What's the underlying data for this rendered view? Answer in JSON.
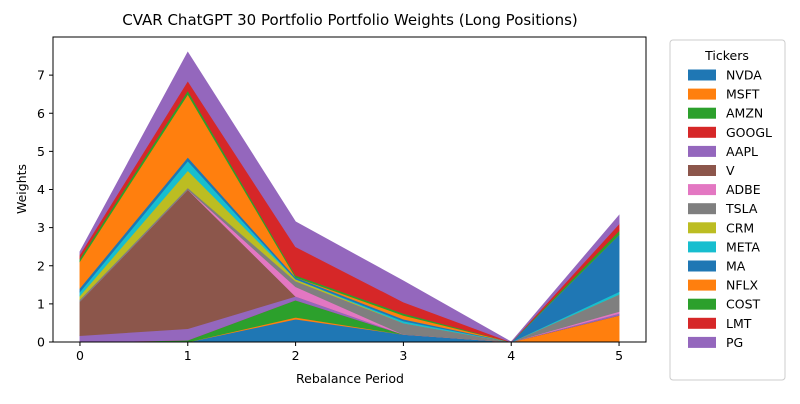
{
  "chart_data": {
    "type": "area",
    "title": "CVAR ChatGPT 30 Portfolio Portfolio Weights (Long Positions)",
    "xlabel": "Rebalance Period",
    "ylabel": "Weights",
    "x": [
      0,
      1,
      2,
      3,
      4,
      5
    ],
    "xlim": [
      -0.25,
      5.25
    ],
    "ylim": [
      0,
      8.0
    ],
    "yticks": [
      0,
      1,
      2,
      3,
      4,
      5,
      6,
      7
    ],
    "grid": false,
    "legend": {
      "title": "Tickers",
      "placement": "outside-right"
    },
    "series": [
      {
        "name": "NVDA",
        "color": "#1f77b4",
        "values": [
          0.0,
          0.0,
          0.6,
          0.2,
          0.0,
          0.0
        ]
      },
      {
        "name": "MSFT",
        "color": "#ff7f0e",
        "values": [
          0.0,
          0.0,
          0.05,
          0.0,
          0.0,
          0.7
        ]
      },
      {
        "name": "AMZN",
        "color": "#2ca02c",
        "values": [
          0.0,
          0.05,
          0.45,
          0.0,
          0.0,
          0.0
        ]
      },
      {
        "name": "GOOGL",
        "color": "#d62728",
        "values": [
          0.0,
          0.0,
          0.0,
          0.0,
          0.0,
          0.0
        ]
      },
      {
        "name": "AAPL",
        "color": "#9467bd",
        "values": [
          0.17,
          0.3,
          0.1,
          0.0,
          0.0,
          0.05
        ]
      },
      {
        "name": "V",
        "color": "#8c564b",
        "values": [
          0.9,
          3.65,
          0.0,
          0.0,
          0.0,
          0.0
        ]
      },
      {
        "name": "ADBE",
        "color": "#e377c2",
        "values": [
          0.0,
          0.0,
          0.25,
          0.0,
          0.0,
          0.05
        ]
      },
      {
        "name": "TSLA",
        "color": "#7f7f7f",
        "values": [
          0.05,
          0.05,
          0.15,
          0.3,
          0.0,
          0.45
        ]
      },
      {
        "name": "CRM",
        "color": "#bcbd22",
        "values": [
          0.1,
          0.45,
          0.05,
          0.0,
          0.0,
          0.0
        ]
      },
      {
        "name": "META",
        "color": "#17becf",
        "values": [
          0.1,
          0.25,
          0.0,
          0.05,
          0.0,
          0.07
        ]
      },
      {
        "name": "MA",
        "color": "#1f77b4",
        "values": [
          0.1,
          0.1,
          0.05,
          0.05,
          0.0,
          1.5
        ]
      },
      {
        "name": "NFLX",
        "color": "#ff7f0e",
        "values": [
          0.7,
          1.65,
          0.0,
          0.1,
          0.0,
          0.0
        ]
      },
      {
        "name": "COST",
        "color": "#2ca02c",
        "values": [
          0.08,
          0.1,
          0.05,
          0.05,
          0.0,
          0.1
        ]
      },
      {
        "name": "LMT",
        "color": "#d62728",
        "values": [
          0.1,
          0.25,
          0.75,
          0.3,
          0.0,
          0.18
        ]
      },
      {
        "name": "PG",
        "color": "#9467bd",
        "values": [
          0.07,
          0.75,
          0.65,
          0.55,
          0.0,
          0.22
        ]
      }
    ]
  }
}
